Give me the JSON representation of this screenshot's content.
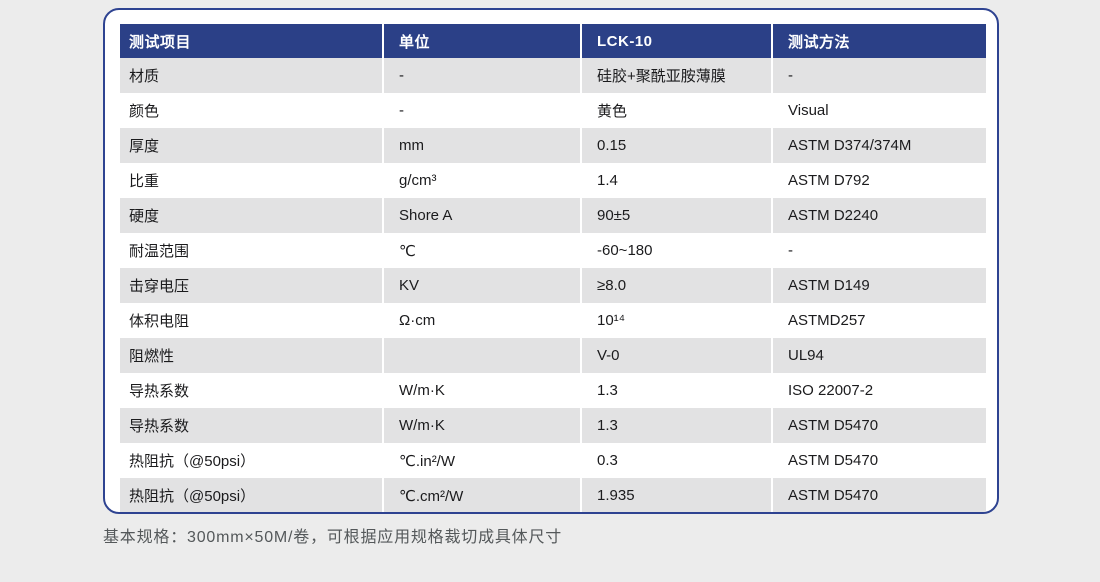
{
  "theme": {
    "page_bg": "#ececec",
    "card_border": "#2e4391",
    "header_bg": "#2b4087",
    "row_alt_bg": "#e2e2e3",
    "caption_color": "#54585a"
  },
  "table": {
    "headers": [
      "测试项目",
      "单位",
      "LCK-10",
      "测试方法"
    ],
    "rows": [
      [
        "材质",
        "-",
        "硅胶+聚酰亚胺薄膜",
        "-"
      ],
      [
        "颜色",
        "-",
        "黄色",
        "Visual"
      ],
      [
        "厚度",
        "mm",
        "0.15",
        "ASTM D374/374M"
      ],
      [
        "比重",
        "g/cm³",
        "1.4",
        "ASTM D792"
      ],
      [
        "硬度",
        "Shore A",
        "90±5",
        "ASTM D2240"
      ],
      [
        "耐温范围",
        "℃",
        "-60~180",
        "-"
      ],
      [
        "击穿电压",
        "KV",
        "≥8.0",
        "ASTM D149"
      ],
      [
        "体积电阻",
        "Ω·cm",
        "10¹⁴",
        "ASTMD257"
      ],
      [
        "阻燃性",
        "",
        "V-0",
        "UL94"
      ],
      [
        "导热系数",
        "W/m·K",
        "1.3",
        "ISO 22007-2"
      ],
      [
        "导热系数",
        "W/m·K",
        "1.3",
        "ASTM D5470"
      ],
      [
        "热阻抗（@50psi）",
        "℃.in²/W",
        "0.3",
        "ASTM D5470"
      ],
      [
        "热阻抗（@50psi）",
        "℃.cm²/W",
        "1.935",
        "ASTM D5470"
      ]
    ]
  },
  "footer": {
    "note": "基本规格：300mm×50M/卷，可根据应用规格裁切成具体尺寸"
  }
}
